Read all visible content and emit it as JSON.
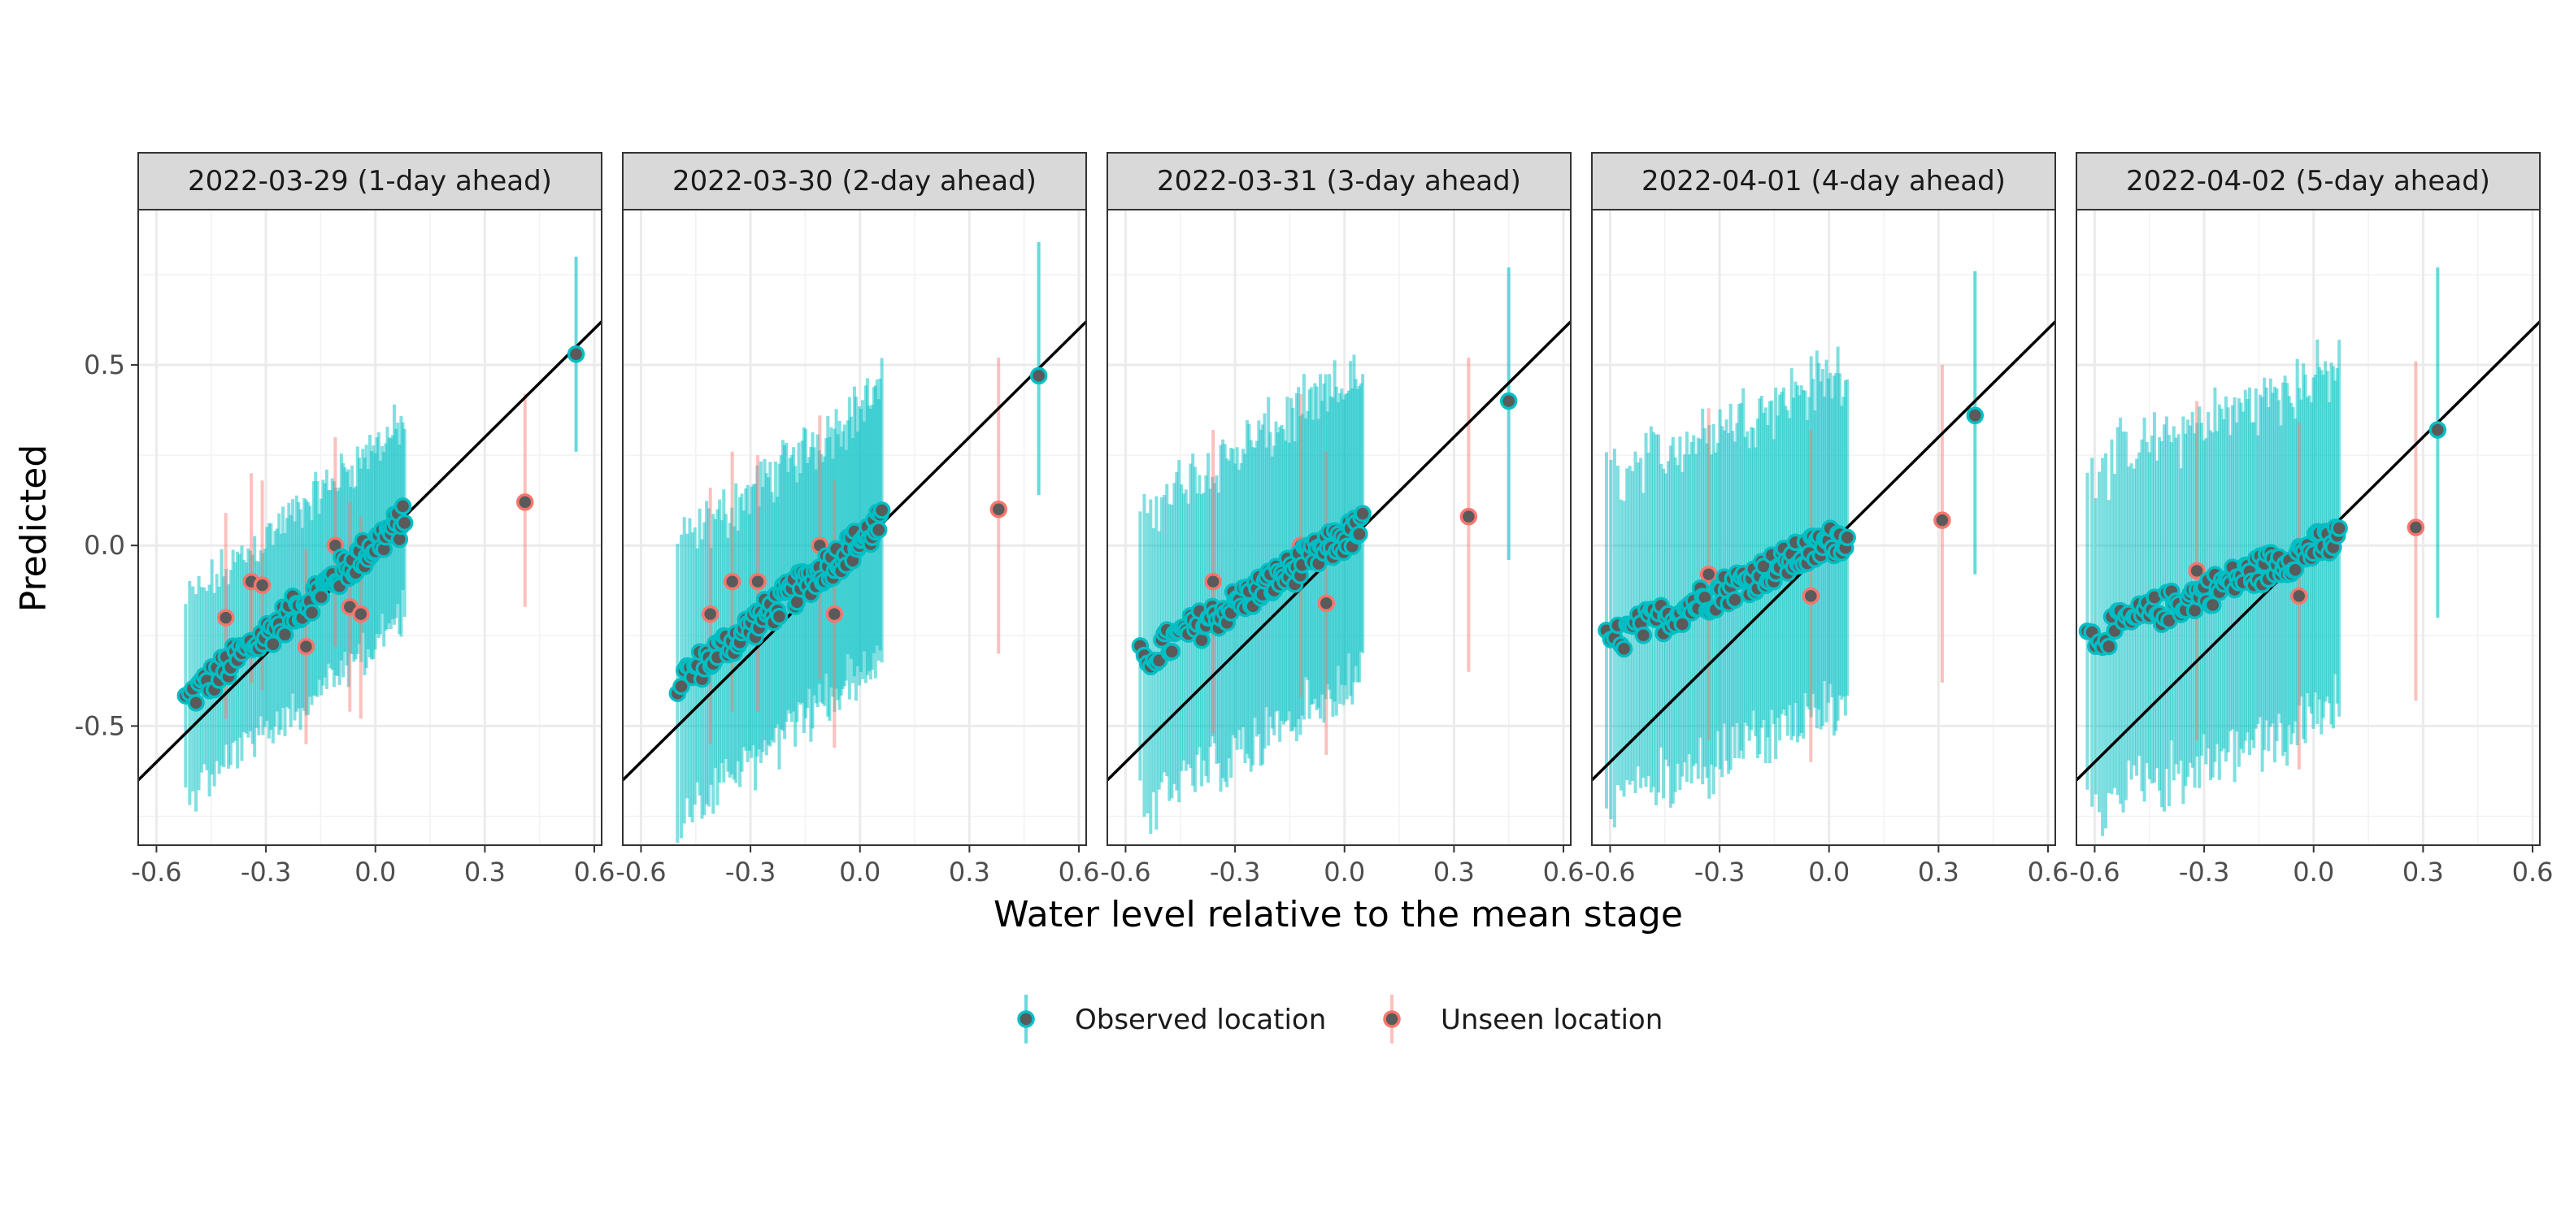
{
  "chart_data": {
    "type": "scatter",
    "xlabel": "Water level relative to the mean stage",
    "ylabel": "Predicted",
    "xlim": [
      -0.65,
      0.62
    ],
    "ylim": [
      -0.83,
      0.93
    ],
    "x_ticks": [
      -0.6,
      -0.3,
      0.0,
      0.3,
      0.6
    ],
    "x_tick_labels": [
      "-0.6",
      "-0.3",
      "0.0",
      "0.3",
      "0.6"
    ],
    "y_ticks": [
      -0.5,
      0.0,
      0.5
    ],
    "y_tick_labels": [
      "-0.5",
      "0.0",
      "0.5"
    ],
    "reference_line": {
      "slope": 1,
      "intercept": 0,
      "color": "#000000"
    },
    "grid": true,
    "legend": {
      "position": "bottom",
      "entries": [
        {
          "label": "Observed location",
          "color": "#00BFC4"
        },
        {
          "label": "Unseen location",
          "color": "#F8766D"
        }
      ]
    },
    "colors": {
      "observed": "#00BFC4",
      "unseen": "#F8766D",
      "point_fill": "#5a5a5a"
    },
    "panels": [
      {
        "title": "2022-03-29 (1-day ahead)",
        "observed_trend": {
          "x_start": -0.52,
          "x_end": 0.08,
          "y_start": -0.43,
          "y_end": 0.07,
          "interval_halfwidth": 0.27
        },
        "unseen_points": [
          {
            "x": -0.41,
            "y": -0.2,
            "lo": -0.48,
            "hi": 0.09
          },
          {
            "x": -0.34,
            "y": -0.1,
            "lo": -0.38,
            "hi": 0.2
          },
          {
            "x": -0.31,
            "y": -0.11,
            "lo": -0.4,
            "hi": 0.18
          },
          {
            "x": -0.19,
            "y": -0.28,
            "lo": -0.55,
            "hi": -0.01
          },
          {
            "x": -0.11,
            "y": 0.0,
            "lo": -0.28,
            "hi": 0.3
          },
          {
            "x": -0.07,
            "y": -0.17,
            "lo": -0.46,
            "hi": 0.12
          },
          {
            "x": -0.04,
            "y": -0.19,
            "lo": -0.48,
            "hi": 0.08
          },
          {
            "x": 0.41,
            "y": 0.12,
            "lo": -0.17,
            "hi": 0.42
          }
        ],
        "highlight_observed": {
          "x": 0.55,
          "y": 0.53,
          "lo": 0.26,
          "hi": 0.8
        }
      },
      {
        "title": "2022-03-30 (2-day ahead)",
        "observed_trend": {
          "x_start": -0.5,
          "x_end": 0.06,
          "y_start": -0.38,
          "y_end": 0.06,
          "interval_halfwidth": 0.37
        },
        "unseen_points": [
          {
            "x": -0.41,
            "y": -0.19,
            "lo": -0.55,
            "hi": 0.16
          },
          {
            "x": -0.35,
            "y": -0.1,
            "lo": -0.46,
            "hi": 0.26
          },
          {
            "x": -0.28,
            "y": -0.1,
            "lo": -0.46,
            "hi": 0.25
          },
          {
            "x": -0.11,
            "y": 0.0,
            "lo": -0.37,
            "hi": 0.36
          },
          {
            "x": -0.07,
            "y": -0.19,
            "lo": -0.56,
            "hi": 0.18
          },
          {
            "x": 0.38,
            "y": 0.1,
            "lo": -0.3,
            "hi": 0.52
          }
        ],
        "highlight_observed": {
          "x": 0.49,
          "y": 0.47,
          "lo": 0.14,
          "hi": 0.84
        }
      },
      {
        "title": "2022-03-31 (3-day ahead)",
        "observed_trend": {
          "x_start": -0.56,
          "x_end": 0.05,
          "y_start": -0.32,
          "y_end": 0.05,
          "interval_halfwidth": 0.42
        },
        "unseen_points": [
          {
            "x": -0.36,
            "y": -0.1,
            "lo": -0.52,
            "hi": 0.32
          },
          {
            "x": -0.12,
            "y": 0.0,
            "lo": -0.42,
            "hi": 0.42
          },
          {
            "x": -0.05,
            "y": -0.16,
            "lo": -0.58,
            "hi": 0.26
          },
          {
            "x": 0.34,
            "y": 0.08,
            "lo": -0.35,
            "hi": 0.52
          }
        ],
        "highlight_observed": {
          "x": 0.45,
          "y": 0.4,
          "lo": -0.04,
          "hi": 0.77
        }
      },
      {
        "title": "2022-04-01 (4-day ahead)",
        "observed_trend": {
          "x_start": -0.61,
          "x_end": 0.05,
          "y_start": -0.27,
          "y_end": 0.03,
          "interval_halfwidth": 0.46
        },
        "unseen_points": [
          {
            "x": -0.33,
            "y": -0.08,
            "lo": -0.54,
            "hi": 0.38
          },
          {
            "x": -0.05,
            "y": -0.14,
            "lo": -0.6,
            "hi": 0.32
          },
          {
            "x": 0.31,
            "y": 0.07,
            "lo": -0.38,
            "hi": 0.5
          }
        ],
        "highlight_observed": {
          "x": 0.4,
          "y": 0.36,
          "lo": -0.08,
          "hi": 0.76
        }
      },
      {
        "title": "2022-04-02 (5-day ahead)",
        "observed_trend": {
          "x_start": -0.62,
          "x_end": 0.07,
          "y_start": -0.26,
          "y_end": 0.02,
          "interval_halfwidth": 0.47
        },
        "unseen_points": [
          {
            "x": -0.32,
            "y": -0.07,
            "lo": -0.54,
            "hi": 0.4
          },
          {
            "x": -0.04,
            "y": -0.14,
            "lo": -0.62,
            "hi": 0.34
          },
          {
            "x": 0.28,
            "y": 0.05,
            "lo": -0.43,
            "hi": 0.51
          }
        ],
        "highlight_observed": {
          "x": 0.34,
          "y": 0.32,
          "lo": -0.2,
          "hi": 0.77
        }
      }
    ]
  }
}
